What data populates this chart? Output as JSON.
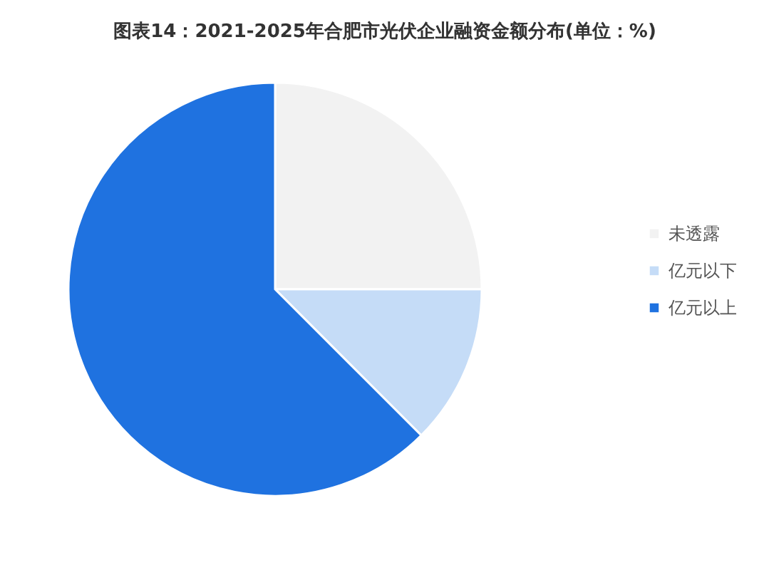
{
  "chart_data": {
    "type": "pie",
    "title": "图表14：2021-2025年合肥市光伏企业融资金额分布(单位：%)",
    "categories": [
      "未透露",
      "亿元以下",
      "亿元以上"
    ],
    "values": [
      25,
      12.5,
      62.5
    ],
    "colors": [
      "#f2f2f2",
      "#c5dcf7",
      "#1f72e0"
    ],
    "legend": "right"
  }
}
